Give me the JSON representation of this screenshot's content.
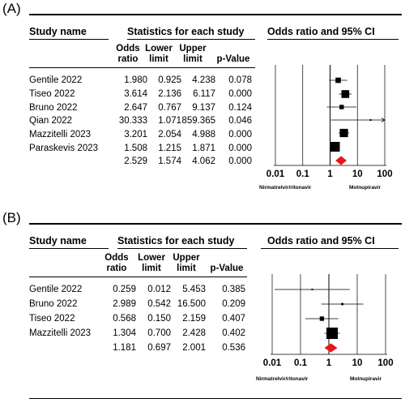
{
  "columns": {
    "study_name": "Study name",
    "stats_group": "Statistics for each study",
    "plot_header": "Odds ratio and 95% CI",
    "odds_ratio": [
      "Odds",
      "ratio"
    ],
    "lower_limit": [
      "Lower",
      "limit"
    ],
    "upper_limit": [
      "Upper",
      "limit"
    ],
    "p_value": "p-Value"
  },
  "panels": [
    {
      "label": "(A)",
      "rows": [
        {
          "study": "Gentile 2022",
          "or": "1.980",
          "lower": "0.925",
          "upper": "4.238",
          "p": "0.078"
        },
        {
          "study": "Tiseo 2022",
          "or": "3.614",
          "lower": "2.136",
          "upper": "6.117",
          "p": "0.000"
        },
        {
          "study": "Bruno 2022",
          "or": "2.647",
          "lower": "0.767",
          "upper": "9.137",
          "p": "0.124"
        },
        {
          "study": "Qian 2022",
          "or": "30.333",
          "lower": "1.071",
          "upper": "859.365",
          "p": "0.046"
        },
        {
          "study": "Mazzitelli 2023",
          "or": "3.201",
          "lower": "2.054",
          "upper": "4.988",
          "p": "0.000"
        },
        {
          "study": "Paraskevis 2023",
          "or": "1.508",
          "lower": "1.215",
          "upper": "1.871",
          "p": "0.000"
        }
      ],
      "pooled": {
        "study": "",
        "or": "2.529",
        "lower": "1.574",
        "upper": "4.062",
        "p": "0.000"
      },
      "axis_ticks": [
        "0.01",
        "0.1",
        "1",
        "10",
        "100"
      ],
      "favours_left": "Nirmatrelvir/ritonavir",
      "favours_right": "Molnupiravir"
    },
    {
      "label": "(B)",
      "rows": [
        {
          "study": "Gentile 2022",
          "or": "0.259",
          "lower": "0.012",
          "upper": "5.453",
          "p": "0.385"
        },
        {
          "study": "Bruno 2022",
          "or": "2.989",
          "lower": "0.542",
          "upper": "16.500",
          "p": "0.209"
        },
        {
          "study": "Tiseo 2022",
          "or": "0.568",
          "lower": "0.150",
          "upper": "2.159",
          "p": "0.407"
        },
        {
          "study": "Mazzitelli 2023",
          "or": "1.304",
          "lower": "0.700",
          "upper": "2.428",
          "p": "0.402"
        }
      ],
      "pooled": {
        "study": "",
        "or": "1.181",
        "lower": "0.697",
        "upper": "2.001",
        "p": "0.536"
      },
      "axis_ticks": [
        "0.01",
        "0.1",
        "1",
        "10",
        "100"
      ],
      "favours_left": "Nirmatrelvir/ritonavir",
      "favours_right": "Molnupiravir"
    }
  ],
  "chart_data": [
    {
      "type": "forest",
      "xscale": "log",
      "xlim": [
        0.01,
        100
      ],
      "square_color": "#000000",
      "pooled_color": "#e8141b",
      "studies": [
        {
          "name": "Gentile 2022",
          "or": 1.98,
          "lower": 0.925,
          "upper": 4.238,
          "weight": 0.55
        },
        {
          "name": "Tiseo 2022",
          "or": 3.614,
          "lower": 2.136,
          "upper": 6.117,
          "weight": 0.8
        },
        {
          "name": "Bruno 2022",
          "or": 2.647,
          "lower": 0.767,
          "upper": 9.137,
          "weight": 0.45
        },
        {
          "name": "Qian 2022",
          "or": 30.333,
          "lower": 1.071,
          "upper": 859.365,
          "weight": 0.12
        },
        {
          "name": "Mazzitelli 2023",
          "or": 3.201,
          "lower": 2.054,
          "upper": 4.988,
          "weight": 0.85
        },
        {
          "name": "Paraskevis 2023",
          "or": 1.508,
          "lower": 1.215,
          "upper": 1.871,
          "weight": 1.0
        }
      ],
      "pooled": {
        "or": 2.529,
        "lower": 1.574,
        "upper": 4.062
      }
    },
    {
      "type": "forest",
      "xscale": "log",
      "xlim": [
        0.01,
        100
      ],
      "square_color": "#000000",
      "pooled_color": "#e8141b",
      "studies": [
        {
          "name": "Gentile 2022",
          "or": 0.259,
          "lower": 0.012,
          "upper": 5.453,
          "weight": 0.12
        },
        {
          "name": "Bruno 2022",
          "or": 2.989,
          "lower": 0.542,
          "upper": 16.5,
          "weight": 0.2
        },
        {
          "name": "Tiseo 2022",
          "or": 0.568,
          "lower": 0.15,
          "upper": 2.159,
          "weight": 0.38
        },
        {
          "name": "Mazzitelli 2023",
          "or": 1.304,
          "lower": 0.7,
          "upper": 2.428,
          "weight": 1.0
        }
      ],
      "pooled": {
        "or": 1.181,
        "lower": 0.697,
        "upper": 2.001
      }
    }
  ]
}
